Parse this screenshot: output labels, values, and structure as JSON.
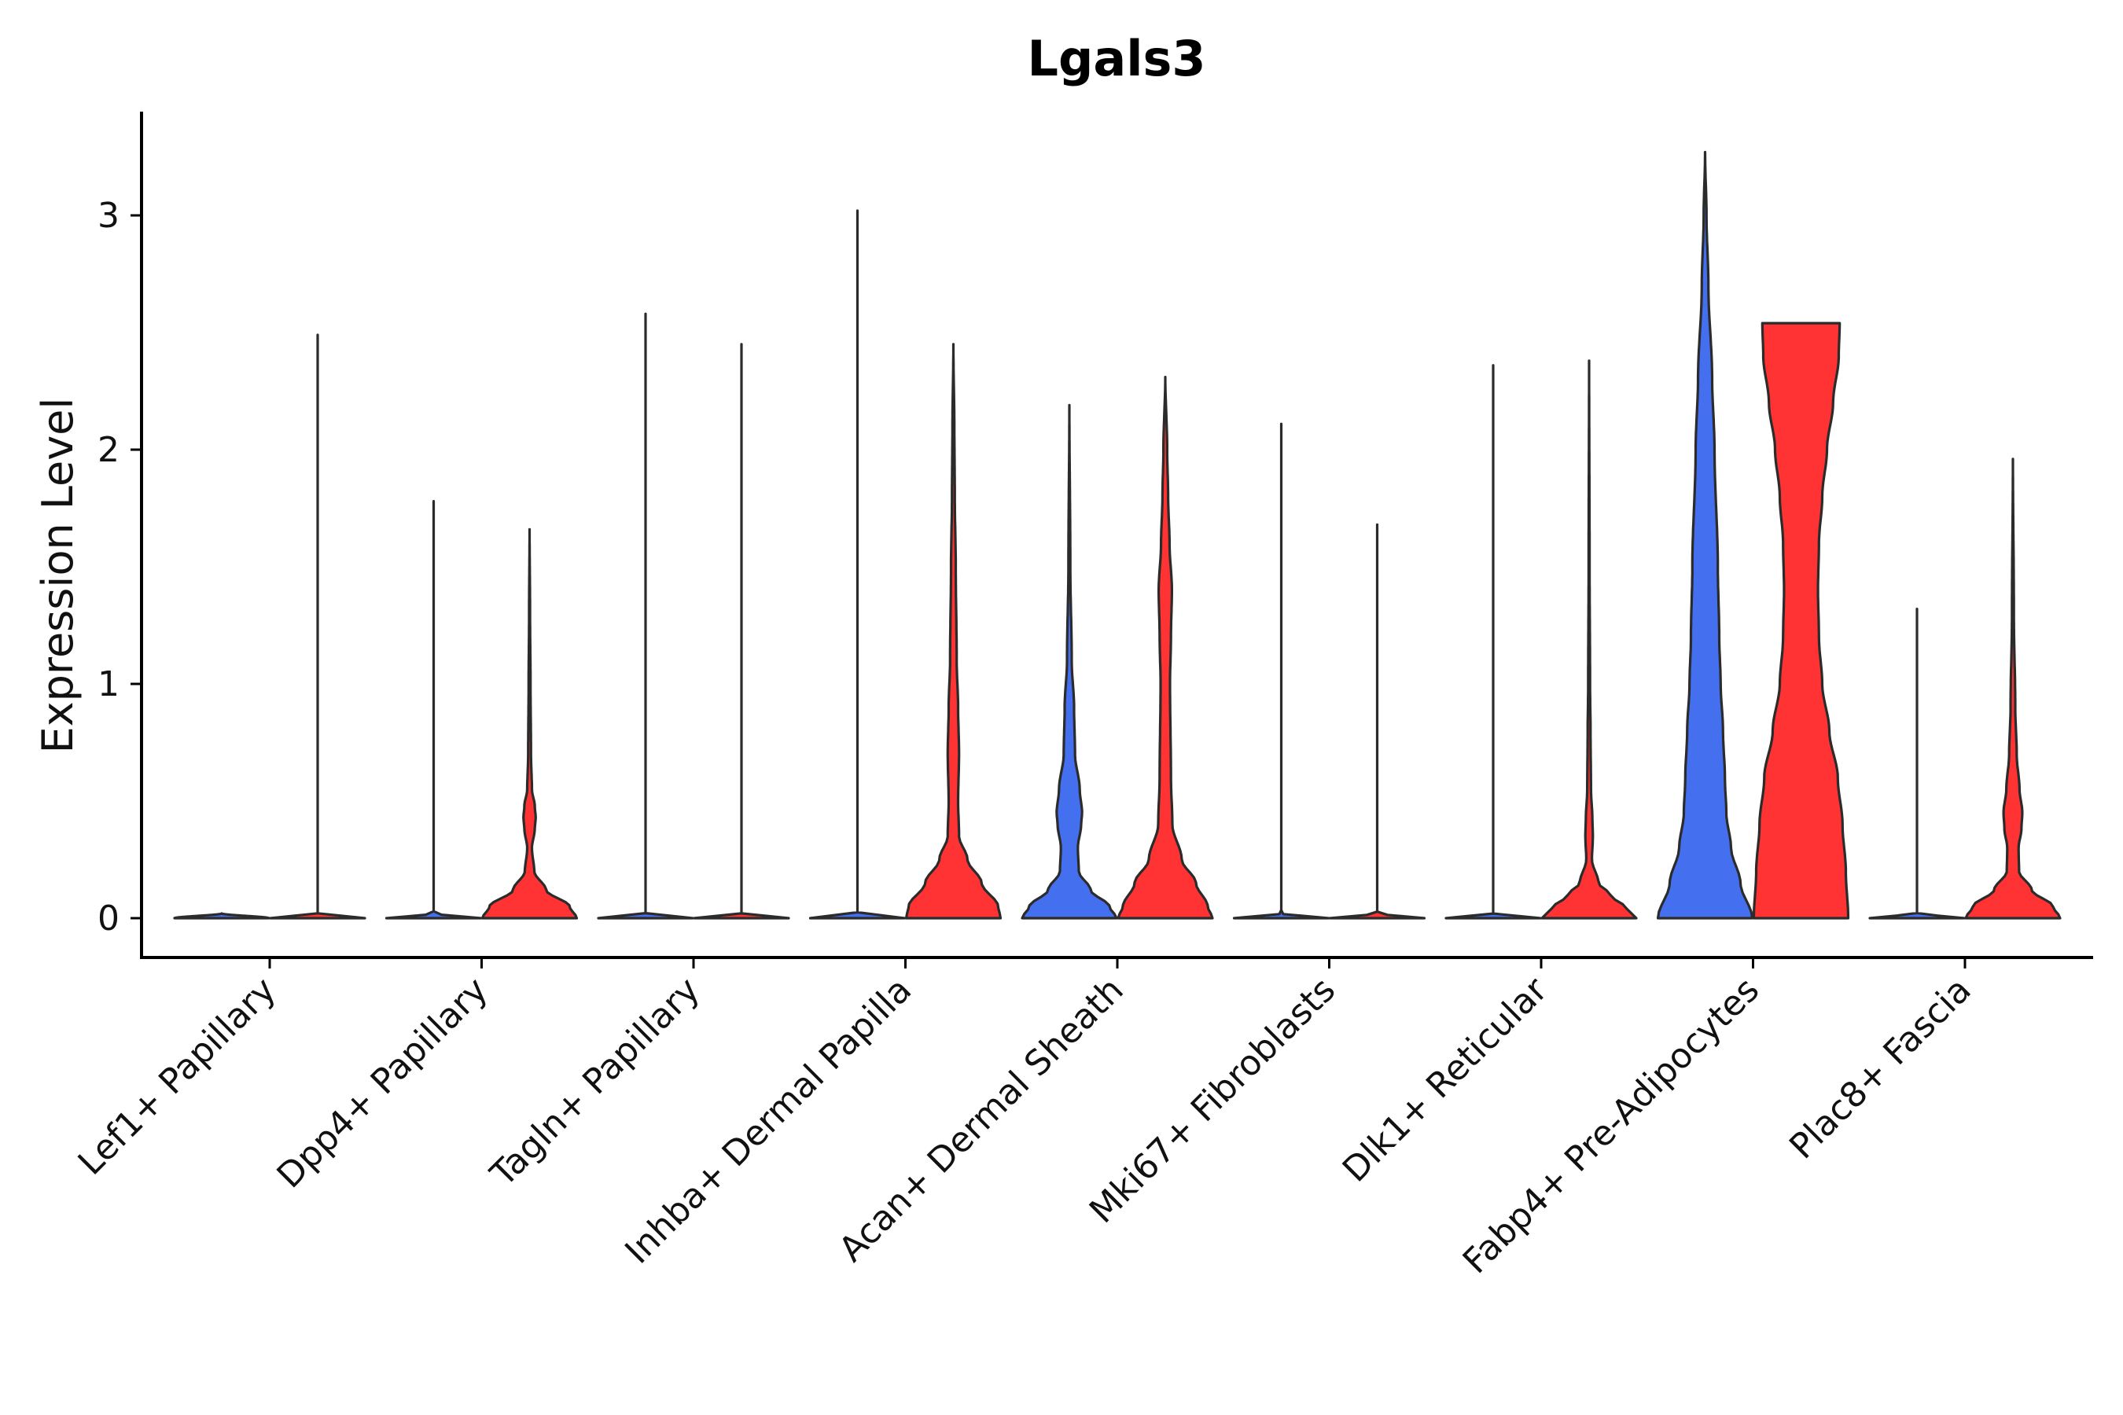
{
  "chart_data": {
    "type": "violin",
    "title": "Lgals3",
    "xlabel": "",
    "ylabel": "Expression Level",
    "ylim": [
      -0.17,
      3.45
    ],
    "yticks": [
      0,
      1,
      2,
      3
    ],
    "categories": [
      "Lef1+ Papillary",
      "Dpp4+ Papillary",
      "Tagln+ Papillary",
      "Inhba+ Dermal Papilla",
      "Acan+ Dermal Sheath",
      "Mki67+ Fibroblasts",
      "Dlk1+ Reticular",
      "Fabp4+ Pre-Adipocytes",
      "Plac8+ Fascia"
    ],
    "colors": {
      "group1": "#4470F0",
      "group2": "#FF3333",
      "outline": "#2b2b2b"
    },
    "groups": [
      [
        {
          "category": 0,
          "side": "left",
          "color": "#4470F0",
          "max": 0.02,
          "profile": [
            [
              0,
              1.0
            ],
            [
              0.02,
              0.0
            ]
          ]
        },
        {
          "category": 0,
          "side": "right",
          "color": "#FF3333",
          "max": 2.49,
          "profile": [
            [
              0,
              1.0
            ],
            [
              0.02,
              0.0
            ]
          ]
        }
      ],
      [
        {
          "category": 1,
          "side": "left",
          "color": "#4470F0",
          "max": 1.78,
          "profile": [
            [
              0,
              1.0
            ],
            [
              0.02,
              0.0
            ]
          ]
        },
        {
          "category": 1,
          "side": "right",
          "color": "#FF3333",
          "max": 1.66,
          "profile": [
            [
              0,
              1.0
            ],
            [
              0.05,
              0.85
            ],
            [
              0.12,
              0.35
            ],
            [
              0.2,
              0.1
            ],
            [
              0.3,
              0.05
            ],
            [
              0.38,
              0.11
            ],
            [
              0.43,
              0.13
            ],
            [
              0.48,
              0.11
            ],
            [
              0.55,
              0.05
            ],
            [
              0.7,
              0.03
            ],
            [
              1.0,
              0.02
            ],
            [
              1.3,
              0.01
            ],
            [
              1.66,
              0.0
            ]
          ]
        }
      ],
      [
        {
          "category": 2,
          "side": "left",
          "color": "#4470F0",
          "max": 2.58,
          "profile": [
            [
              0,
              1.0
            ],
            [
              0.02,
              0.0
            ]
          ]
        },
        {
          "category": 2,
          "side": "right",
          "color": "#FF3333",
          "max": 2.45,
          "profile": [
            [
              0,
              1.0
            ],
            [
              0.02,
              0.0
            ]
          ]
        }
      ],
      [
        {
          "category": 3,
          "side": "left",
          "color": "#4470F0",
          "max": 3.02,
          "profile": [
            [
              0,
              1.0
            ],
            [
              0.02,
              0.0
            ]
          ]
        },
        {
          "category": 3,
          "side": "right",
          "color": "#FF3333",
          "max": 2.45,
          "profile": [
            [
              0,
              1.0
            ],
            [
              0.05,
              0.95
            ],
            [
              0.15,
              0.6
            ],
            [
              0.25,
              0.3
            ],
            [
              0.35,
              0.12
            ],
            [
              0.5,
              0.1
            ],
            [
              0.7,
              0.12
            ],
            [
              0.9,
              0.1
            ],
            [
              1.1,
              0.07
            ],
            [
              1.5,
              0.05
            ],
            [
              1.8,
              0.03
            ],
            [
              2.1,
              0.02
            ],
            [
              2.45,
              0.0
            ]
          ]
        }
      ],
      [
        {
          "category": 4,
          "side": "left",
          "color": "#4470F0",
          "max": 2.19,
          "profile": [
            [
              0,
              1.0
            ],
            [
              0.05,
              0.85
            ],
            [
              0.12,
              0.45
            ],
            [
              0.2,
              0.2
            ],
            [
              0.3,
              0.18
            ],
            [
              0.4,
              0.25
            ],
            [
              0.45,
              0.27
            ],
            [
              0.55,
              0.22
            ],
            [
              0.7,
              0.12
            ],
            [
              0.9,
              0.1
            ],
            [
              1.1,
              0.05
            ],
            [
              1.5,
              0.02
            ],
            [
              2.19,
              0.0
            ]
          ]
        },
        {
          "category": 4,
          "side": "right",
          "color": "#FF3333",
          "max": 2.31,
          "profile": [
            [
              0,
              1.0
            ],
            [
              0.05,
              0.9
            ],
            [
              0.15,
              0.65
            ],
            [
              0.25,
              0.35
            ],
            [
              0.4,
              0.15
            ],
            [
              0.6,
              0.12
            ],
            [
              1.0,
              0.1
            ],
            [
              1.2,
              0.12
            ],
            [
              1.4,
              0.14
            ],
            [
              1.6,
              0.09
            ],
            [
              1.8,
              0.06
            ],
            [
              2.0,
              0.04
            ],
            [
              2.31,
              0.0
            ]
          ]
        }
      ],
      [
        {
          "category": 5,
          "side": "left",
          "color": "#4470F0",
          "max": 2.11,
          "profile": [
            [
              0,
              1.0
            ],
            [
              0.02,
              0.0
            ]
          ]
        },
        {
          "category": 5,
          "side": "right",
          "color": "#FF3333",
          "max": 1.68,
          "profile": [
            [
              0,
              1.0
            ],
            [
              0.02,
              0.0
            ]
          ]
        }
      ],
      [
        {
          "category": 6,
          "side": "left",
          "color": "#4470F0",
          "max": 2.36,
          "profile": [
            [
              0,
              1.0
            ],
            [
              0.02,
              0.0
            ]
          ]
        },
        {
          "category": 6,
          "side": "right",
          "color": "#FF3333",
          "max": 2.38,
          "profile": [
            [
              0,
              1.0
            ],
            [
              0.04,
              0.8
            ],
            [
              0.1,
              0.45
            ],
            [
              0.15,
              0.2
            ],
            [
              0.25,
              0.06
            ],
            [
              0.35,
              0.08
            ],
            [
              0.42,
              0.07
            ],
            [
              0.55,
              0.04
            ],
            [
              0.8,
              0.03
            ],
            [
              1.0,
              0.02
            ],
            [
              1.5,
              0.01
            ],
            [
              2.38,
              0.0
            ]
          ]
        }
      ],
      [
        {
          "category": 7,
          "side": "left",
          "color": "#4470F0",
          "max": 3.27,
          "profile": [
            [
              0,
              1.0
            ],
            [
              0.15,
              0.75
            ],
            [
              0.3,
              0.55
            ],
            [
              0.45,
              0.45
            ],
            [
              0.6,
              0.42
            ],
            [
              0.8,
              0.38
            ],
            [
              1.0,
              0.33
            ],
            [
              1.2,
              0.3
            ],
            [
              1.5,
              0.27
            ],
            [
              2.0,
              0.2
            ],
            [
              2.3,
              0.15
            ],
            [
              2.7,
              0.07
            ],
            [
              3.0,
              0.03
            ],
            [
              3.27,
              0.0
            ]
          ]
        },
        {
          "category": 7,
          "side": "right",
          "color": "#FF3333",
          "max": 2.54,
          "profile": [
            [
              0,
              1.0
            ],
            [
              0.2,
              0.95
            ],
            [
              0.4,
              0.88
            ],
            [
              0.6,
              0.78
            ],
            [
              0.8,
              0.6
            ],
            [
              1.0,
              0.45
            ],
            [
              1.2,
              0.38
            ],
            [
              1.4,
              0.36
            ],
            [
              1.6,
              0.38
            ],
            [
              1.8,
              0.45
            ],
            [
              2.0,
              0.55
            ],
            [
              2.2,
              0.68
            ],
            [
              2.4,
              0.8
            ],
            [
              2.54,
              0.82
            ]
          ]
        }
      ],
      [
        {
          "category": 8,
          "side": "left",
          "color": "#4470F0",
          "max": 1.32,
          "profile": [
            [
              0,
              1.0
            ],
            [
              0.02,
              0.0
            ]
          ]
        },
        {
          "category": 8,
          "side": "right",
          "color": "#FF3333",
          "max": 1.96,
          "profile": [
            [
              0,
              1.0
            ],
            [
              0.05,
              0.85
            ],
            [
              0.12,
              0.4
            ],
            [
              0.2,
              0.13
            ],
            [
              0.3,
              0.12
            ],
            [
              0.38,
              0.18
            ],
            [
              0.45,
              0.2
            ],
            [
              0.55,
              0.14
            ],
            [
              0.7,
              0.08
            ],
            [
              0.9,
              0.05
            ],
            [
              1.3,
              0.02
            ],
            [
              1.96,
              0.0
            ]
          ]
        }
      ]
    ]
  }
}
